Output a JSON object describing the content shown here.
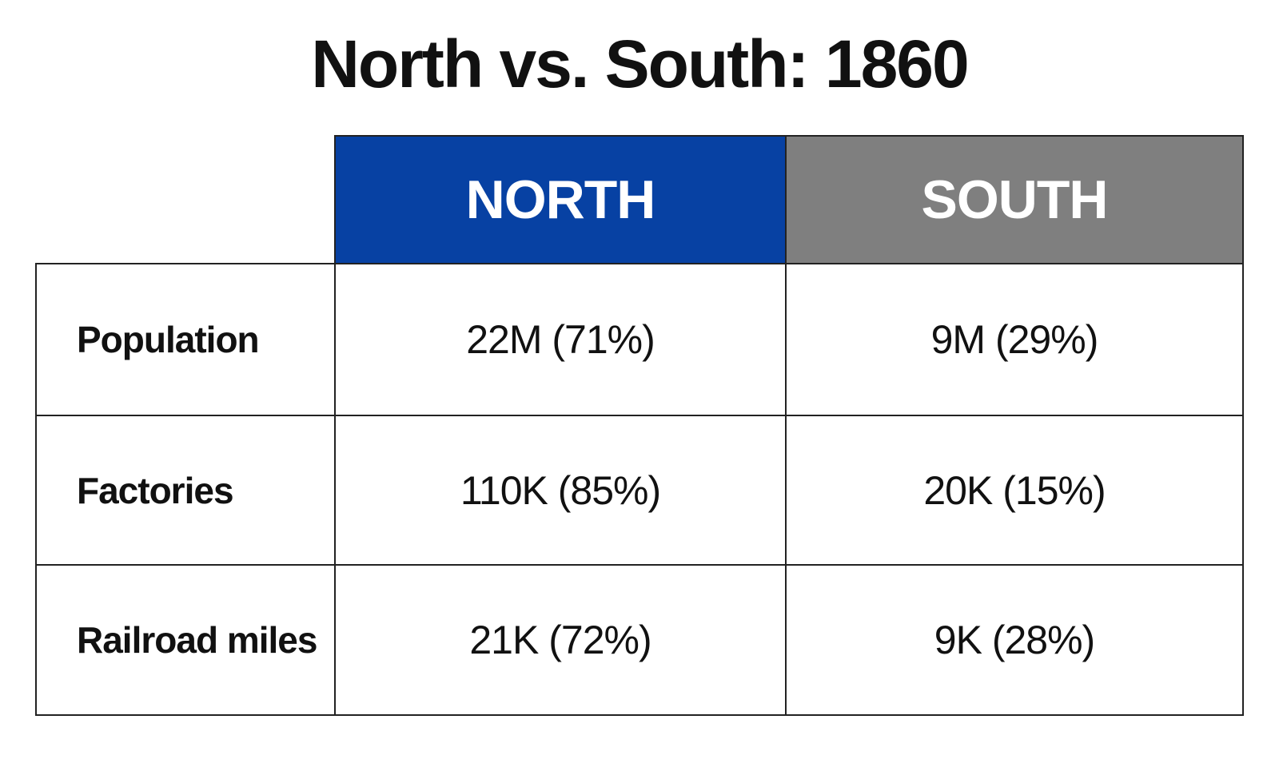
{
  "title": "North vs. South: 1860",
  "table": {
    "columns": [
      "NORTH",
      "SOUTH"
    ],
    "rows": [
      [
        "Population",
        "22M (71%)",
        "9M (29%)"
      ],
      [
        "Factories",
        "110K (85%)",
        "20K (15%)"
      ],
      [
        "Railroad miles",
        "21K (72%)",
        "9K (28%)"
      ]
    ]
  }
}
